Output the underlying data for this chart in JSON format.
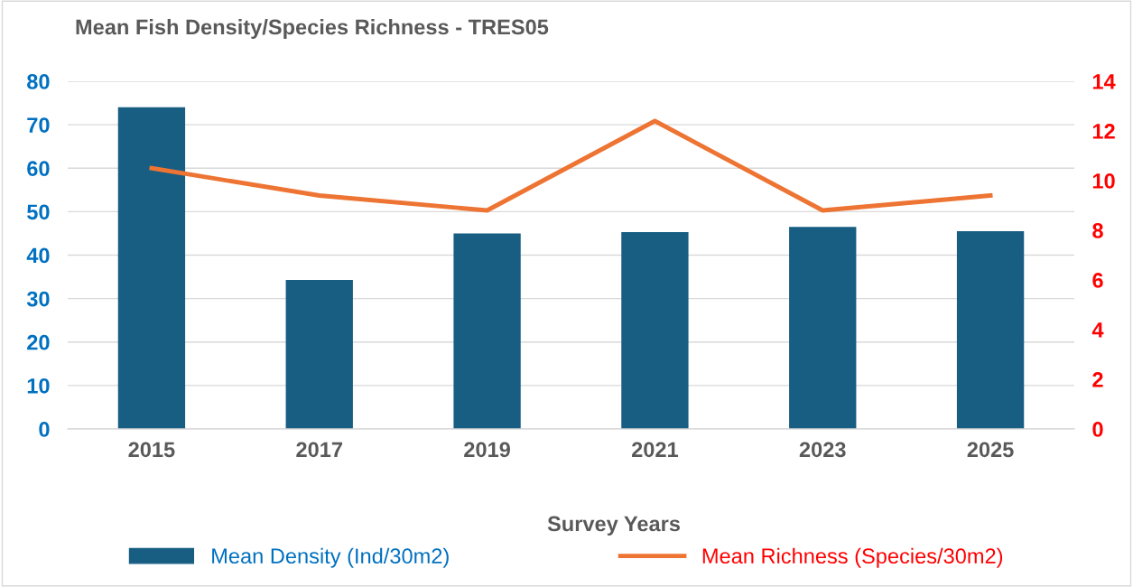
{
  "chart_data": {
    "type": "bar",
    "title": "Mean Fish Density/Species Richness - TRES05",
    "xlabel": "Survey Years",
    "categories": [
      "2015",
      "2017",
      "2019",
      "2021",
      "2023",
      "2025"
    ],
    "series": [
      {
        "name": "Mean Density (Ind/30m2)",
        "color": "#175e82",
        "values": [
          74,
          34.3,
          45,
          45.3,
          46.5,
          45.5
        ]
      },
      {
        "name": "Mean Richness (Species/30m2)",
        "color": "#ed7433",
        "type": "line",
        "axis": "y2",
        "values": [
          10.5,
          9.4,
          8.8,
          12.4,
          8.8,
          9.4
        ]
      }
    ],
    "ylim": [
      0,
      80
    ],
    "yticks": [
      0,
      10,
      20,
      30,
      40,
      50,
      60,
      70,
      80
    ],
    "y2lim": [
      0,
      14
    ],
    "y2ticks": [
      0,
      2,
      4,
      6,
      8,
      10,
      12,
      14
    ],
    "grid": "y",
    "legend": "bottom",
    "marker": "none",
    "line_style": "solid"
  }
}
